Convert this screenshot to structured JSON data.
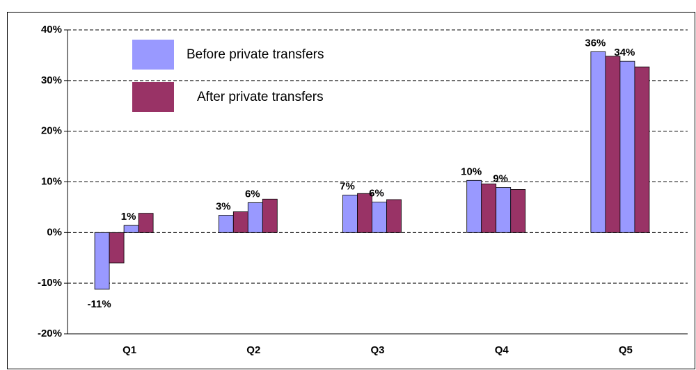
{
  "chart_data": {
    "type": "bar",
    "categories": [
      "Q1",
      "Q2",
      "Q3",
      "Q4",
      "Q5"
    ],
    "series": [
      {
        "name": "Before private transfers",
        "color": "#9999ff",
        "values": [
          -11.2,
          3.4,
          7.4,
          10.3,
          35.7
        ],
        "value_labels": [
          "-11%",
          "3%",
          "7%",
          "10%",
          "36%"
        ]
      },
      {
        "name": "After private transfers",
        "color": "#993366",
        "values": [
          -6.0,
          4.1,
          7.7,
          9.6,
          34.8
        ]
      },
      {
        "color": "#9999ff",
        "values": [
          1.4,
          5.9,
          6.0,
          8.9,
          33.8
        ],
        "value_labels": [
          "1%",
          "6%",
          "6%",
          "9%",
          "34%"
        ]
      },
      {
        "color": "#993366",
        "values": [
          3.8,
          6.6,
          6.5,
          8.5,
          32.7
        ]
      }
    ],
    "ylim": [
      -20,
      40
    ],
    "yticks": [
      {
        "value": -20,
        "label": "-20%"
      },
      {
        "value": -10,
        "label": "-10%"
      },
      {
        "value": 0,
        "label": "0%"
      },
      {
        "value": 10,
        "label": "10%"
      },
      {
        "value": 20,
        "label": "20%"
      },
      {
        "value": 30,
        "label": "30%"
      },
      {
        "value": 40,
        "label": "40%"
      }
    ],
    "grid": true
  }
}
